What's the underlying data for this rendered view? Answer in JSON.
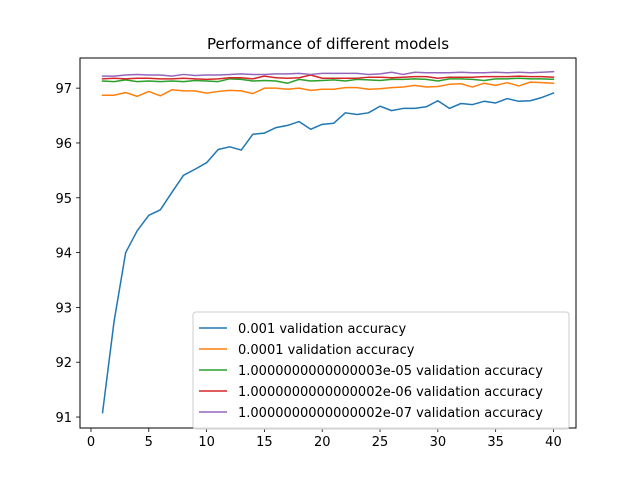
{
  "chart_data": {
    "type": "line",
    "title": "Performance of different models",
    "xlabel": "",
    "ylabel": "",
    "xlim": [
      -0.95,
      41.95
    ],
    "ylim": [
      90.8,
      97.55
    ],
    "xticks": [
      0,
      5,
      10,
      15,
      20,
      25,
      30,
      35,
      40
    ],
    "yticks": [
      91,
      92,
      93,
      94,
      95,
      96,
      97
    ],
    "grid": false,
    "legend_position": "lower right",
    "x": [
      1,
      2,
      3,
      4,
      5,
      6,
      7,
      8,
      9,
      10,
      11,
      12,
      13,
      14,
      15,
      16,
      17,
      18,
      19,
      20,
      21,
      22,
      23,
      24,
      25,
      26,
      27,
      28,
      29,
      30,
      31,
      32,
      33,
      34,
      35,
      36,
      37,
      38,
      39,
      40
    ],
    "series": [
      {
        "name": "0.001 validation accuracy",
        "color": "#1f77b4",
        "values": [
          91.08,
          92.75,
          94.0,
          94.4,
          94.68,
          94.78,
          95.1,
          95.41,
          95.52,
          95.64,
          95.88,
          95.93,
          95.87,
          96.16,
          96.18,
          96.28,
          96.32,
          96.39,
          96.25,
          96.34,
          96.36,
          96.55,
          96.52,
          96.55,
          96.67,
          96.59,
          96.63,
          96.63,
          96.66,
          96.77,
          96.63,
          96.72,
          96.7,
          96.76,
          96.73,
          96.81,
          96.76,
          96.77,
          96.83,
          96.91
        ]
      },
      {
        "name": "0.0001 validation accuracy",
        "color": "#ff7f0e",
        "values": [
          96.87,
          96.87,
          96.92,
          96.85,
          96.94,
          96.86,
          96.97,
          96.95,
          96.95,
          96.91,
          96.94,
          96.96,
          96.95,
          96.9,
          97.0,
          97.0,
          96.98,
          97.0,
          96.96,
          96.98,
          96.98,
          97.01,
          97.01,
          96.98,
          96.99,
          97.01,
          97.02,
          97.05,
          97.02,
          97.03,
          97.07,
          97.08,
          97.02,
          97.09,
          97.05,
          97.1,
          97.04,
          97.11,
          97.1,
          97.09
        ]
      },
      {
        "name": "1.0000000000000003e-05 validation accuracy",
        "color": "#2ca02c",
        "values": [
          97.13,
          97.12,
          97.15,
          97.12,
          97.13,
          97.12,
          97.13,
          97.12,
          97.14,
          97.13,
          97.12,
          97.17,
          97.16,
          97.13,
          97.14,
          97.13,
          97.09,
          97.16,
          97.13,
          97.14,
          97.15,
          97.13,
          97.16,
          97.15,
          97.14,
          97.16,
          97.16,
          97.17,
          97.16,
          97.13,
          97.17,
          97.17,
          97.16,
          97.14,
          97.17,
          97.17,
          97.18,
          97.17,
          97.17,
          97.16
        ]
      },
      {
        "name": "1.0000000000000002e-06 validation accuracy",
        "color": "#d62728",
        "values": [
          97.17,
          97.18,
          97.17,
          97.18,
          97.18,
          97.17,
          97.17,
          97.18,
          97.17,
          97.16,
          97.17,
          97.19,
          97.19,
          97.17,
          97.22,
          97.19,
          97.18,
          97.19,
          97.24,
          97.18,
          97.18,
          97.18,
          97.18,
          97.2,
          97.2,
          97.19,
          97.2,
          97.21,
          97.21,
          97.18,
          97.2,
          97.2,
          97.2,
          97.21,
          97.21,
          97.21,
          97.22,
          97.21,
          97.21,
          97.2
        ]
      },
      {
        "name": "1.0000000000000002e-07 validation accuracy",
        "color": "#9467bd",
        "values": [
          97.22,
          97.22,
          97.24,
          97.25,
          97.24,
          97.24,
          97.22,
          97.25,
          97.23,
          97.24,
          97.24,
          97.25,
          97.26,
          97.25,
          97.25,
          97.26,
          97.26,
          97.27,
          97.25,
          97.27,
          97.27,
          97.27,
          97.27,
          97.25,
          97.26,
          97.29,
          97.25,
          97.29,
          97.28,
          97.28,
          97.28,
          97.29,
          97.28,
          97.28,
          97.29,
          97.28,
          97.29,
          97.28,
          97.29,
          97.3
        ]
      }
    ]
  }
}
